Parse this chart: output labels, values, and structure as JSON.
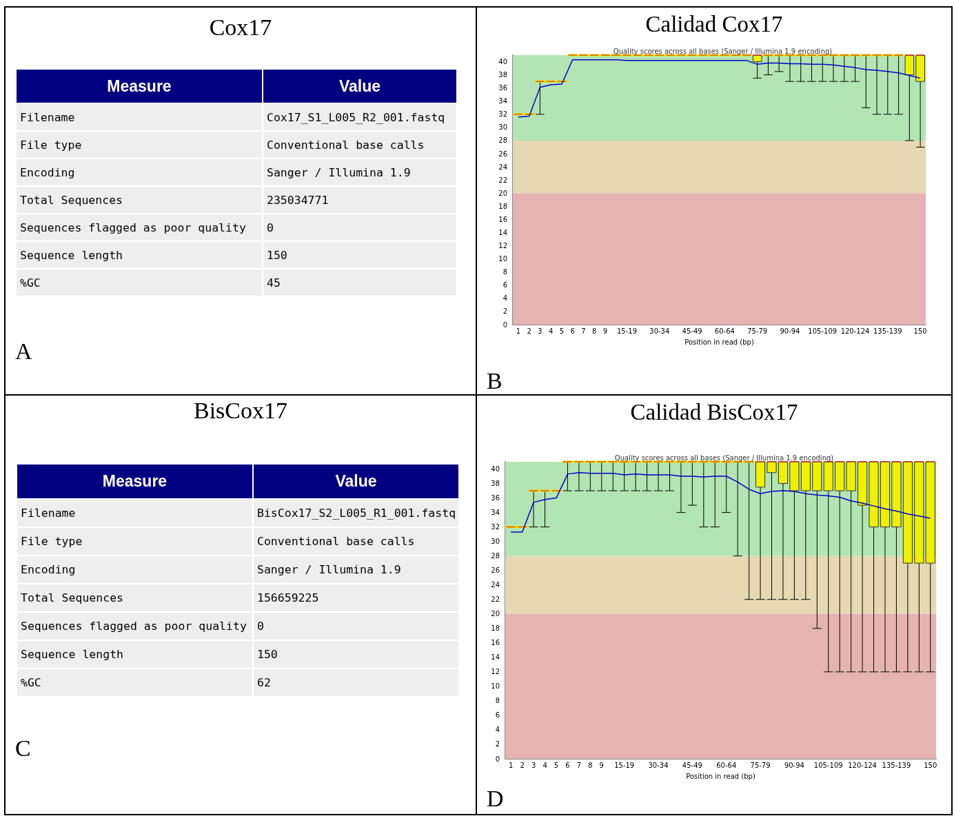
{
  "chart_data": [
    {
      "type": "other",
      "title": "Cox17",
      "annotations": [
        "Measure",
        "Value",
        "Filename",
        "Cox17_S1_L005_R2_001.fastq",
        "File type",
        "Conventional base calls",
        "Encoding",
        "Sanger / Illumina 1.9",
        "Total Sequences",
        "235034771",
        "Sequences flagged as poor quality",
        "0",
        "Sequence length",
        "150",
        "%GC",
        "45",
        "A"
      ]
    },
    {
      "type": "box",
      "title": "Calidad Cox17",
      "subtitle": "Quality scores across all bases (Sanger / Illumina 1.9 encoding)",
      "xlabel": "Position in read (bp)",
      "annotations": [
        "B"
      ],
      "categories": [
        "1",
        "2",
        "3",
        "4",
        "5",
        "6",
        "7",
        "8",
        "9",
        null,
        "15-19",
        null,
        null,
        "30-34",
        null,
        null,
        "45-49",
        null,
        null,
        "60-64",
        null,
        null,
        "75-79",
        null,
        null,
        "90-94",
        null,
        null,
        "105-109",
        null,
        null,
        "120-124",
        null,
        null,
        "135-139",
        null,
        null,
        "150"
      ],
      "ylim": [
        0,
        41
      ],
      "yticks": [
        0,
        2,
        4,
        6,
        8,
        10,
        12,
        14,
        16,
        18,
        20,
        22,
        24,
        26,
        28,
        30,
        32,
        34,
        36,
        38,
        40
      ],
      "grid": false,
      "marker": "none",
      "bands": [
        {
          "axis": "y",
          "from": 28,
          "to": 41,
          "color": "#b3e4b3"
        },
        {
          "axis": "y",
          "from": 20,
          "to": 28,
          "color": "#e6d8b3"
        },
        {
          "axis": "y",
          "from": 0,
          "to": 20,
          "color": "#e6b3b3"
        }
      ],
      "series": [
        {
          "type": "box",
          "color": "#f0f000",
          "boxes": [
            {
              "low": 32,
              "q1": 32,
              "median": 32,
              "q3": 32,
              "high": 32
            },
            {
              "low": 32,
              "q1": 32,
              "median": 32,
              "q3": 32,
              "high": 32
            },
            {
              "low": 32,
              "q1": 37,
              "median": 37,
              "q3": 37,
              "high": 37
            },
            {
              "low": 37,
              "q1": 37,
              "median": 37,
              "q3": 37,
              "high": 37
            },
            {
              "low": 37,
              "q1": 37,
              "median": 37,
              "q3": 37,
              "high": 37
            },
            {
              "low": 41,
              "q1": 41,
              "median": 41,
              "q3": 41,
              "high": 41
            },
            {
              "low": 41,
              "q1": 41,
              "median": 41,
              "q3": 41,
              "high": 41
            },
            {
              "low": 41,
              "q1": 41,
              "median": 41,
              "q3": 41,
              "high": 41
            },
            {
              "low": 41,
              "q1": 41,
              "median": 41,
              "q3": 41,
              "high": 41
            },
            {
              "low": 41,
              "q1": 41,
              "median": 41,
              "q3": 41,
              "high": 41
            },
            {
              "low": 41,
              "q1": 41,
              "median": 41,
              "q3": 41,
              "high": 41
            },
            {
              "low": 41,
              "q1": 41,
              "median": 41,
              "q3": 41,
              "high": 41
            },
            {
              "low": 41,
              "q1": 41,
              "median": 41,
              "q3": 41,
              "high": 41
            },
            {
              "low": 41,
              "q1": 41,
              "median": 41,
              "q3": 41,
              "high": 41
            },
            {
              "low": 41,
              "q1": 41,
              "median": 41,
              "q3": 41,
              "high": 41
            },
            {
              "low": 41,
              "q1": 41,
              "median": 41,
              "q3": 41,
              "high": 41
            },
            {
              "low": 41,
              "q1": 41,
              "median": 41,
              "q3": 41,
              "high": 41
            },
            {
              "low": 41,
              "q1": 41,
              "median": 41,
              "q3": 41,
              "high": 41
            },
            {
              "low": 41,
              "q1": 41,
              "median": 41,
              "q3": 41,
              "high": 41
            },
            {
              "low": 41,
              "q1": 41,
              "median": 41,
              "q3": 41,
              "high": 41
            },
            {
              "low": 41,
              "q1": 41,
              "median": 41,
              "q3": 41,
              "high": 41
            },
            {
              "low": 41,
              "q1": 41,
              "median": 41,
              "q3": 41,
              "high": 41
            },
            {
              "low": 37.5,
              "q1": 40,
              "median": 41,
              "q3": 41,
              "high": 41
            },
            {
              "low": 38,
              "q1": 41,
              "median": 41,
              "q3": 41,
              "high": 41
            },
            {
              "low": 38.5,
              "q1": 41,
              "median": 41,
              "q3": 41,
              "high": 41
            },
            {
              "low": 37,
              "q1": 41,
              "median": 41,
              "q3": 41,
              "high": 41
            },
            {
              "low": 37,
              "q1": 41,
              "median": 41,
              "q3": 41,
              "high": 41
            },
            {
              "low": 37,
              "q1": 41,
              "median": 41,
              "q3": 41,
              "high": 41
            },
            {
              "low": 37,
              "q1": 41,
              "median": 41,
              "q3": 41,
              "high": 41
            },
            {
              "low": 37,
              "q1": 41,
              "median": 41,
              "q3": 41,
              "high": 41
            },
            {
              "low": 37,
              "q1": 41,
              "median": 41,
              "q3": 41,
              "high": 41
            },
            {
              "low": 37,
              "q1": 41,
              "median": 41,
              "q3": 41,
              "high": 41
            },
            {
              "low": 33,
              "q1": 41,
              "median": 41,
              "q3": 41,
              "high": 41
            },
            {
              "low": 32,
              "q1": 41,
              "median": 41,
              "q3": 41,
              "high": 41
            },
            {
              "low": 32,
              "q1": 41,
              "median": 41,
              "q3": 41,
              "high": 41
            },
            {
              "low": 32,
              "q1": 41,
              "median": 41,
              "q3": 41,
              "high": 41
            },
            {
              "low": 28,
              "q1": 38,
              "median": 41,
              "q3": 41,
              "high": 41
            },
            {
              "low": 27,
              "q1": 37,
              "median": 41,
              "q3": 41,
              "high": 41
            }
          ]
        },
        {
          "type": "line",
          "color": "#0000cc",
          "values": [
            31.6,
            31.7,
            36.1,
            36.5,
            36.6,
            40.3,
            40.3,
            40.3,
            40.3,
            40.3,
            40.2,
            40.2,
            40.2,
            40.2,
            40.2,
            40.2,
            40.2,
            40.2,
            40.2,
            40.2,
            40.2,
            40.2,
            39.6,
            39.8,
            39.8,
            39.7,
            39.7,
            39.6,
            39.6,
            39.5,
            39.3,
            39.1,
            38.8,
            38.7,
            38.5,
            38.3,
            37.9,
            37.5
          ]
        }
      ]
    },
    {
      "type": "other",
      "title": "BisCox17",
      "annotations": [
        "Measure",
        "Value",
        "Filename",
        "BisCox17_S2_L005_R1_001.fastq",
        "File type",
        "Conventional base calls",
        "Encoding",
        "Sanger / Illumina 1.9",
        "Total Sequences",
        "156659225",
        "Sequences flagged as poor quality",
        "0",
        "Sequence length",
        "150",
        "%GC",
        "62",
        "C"
      ]
    },
    {
      "type": "box",
      "title": "Calidad BisCox17",
      "subtitle": "Quality scores across all bases (Sanger / Illumina 1.9 encoding)",
      "xlabel": "Position in read (bp)",
      "annotations": [
        "D"
      ],
      "categories": [
        "1",
        "2",
        "3",
        "4",
        "5",
        "6",
        "7",
        "8",
        "9",
        null,
        "15-19",
        null,
        null,
        "30-34",
        null,
        null,
        "45-49",
        null,
        null,
        "60-64",
        null,
        null,
        "75-79",
        null,
        null,
        "90-94",
        null,
        null,
        "105-109",
        null,
        null,
        "120-124",
        null,
        null,
        "135-139",
        null,
        null,
        "150"
      ],
      "ylim": [
        0,
        41
      ],
      "yticks": [
        0,
        2,
        4,
        6,
        8,
        10,
        12,
        14,
        16,
        18,
        20,
        22,
        24,
        26,
        28,
        30,
        32,
        34,
        36,
        38,
        40
      ],
      "grid": false,
      "marker": "none",
      "bands": [
        {
          "axis": "y",
          "from": 28,
          "to": 41,
          "color": "#b3e4b3"
        },
        {
          "axis": "y",
          "from": 20,
          "to": 28,
          "color": "#e6d8b3"
        },
        {
          "axis": "y",
          "from": 0,
          "to": 20,
          "color": "#e6b3b3"
        }
      ],
      "series": [
        {
          "type": "box",
          "color": "#f0f000",
          "boxes": [
            {
              "low": 32,
              "q1": 32,
              "median": 32,
              "q3": 32,
              "high": 32
            },
            {
              "low": 32,
              "q1": 32,
              "median": 32,
              "q3": 32,
              "high": 32
            },
            {
              "low": 32,
              "q1": 37,
              "median": 37,
              "q3": 37,
              "high": 37
            },
            {
              "low": 32,
              "q1": 37,
              "median": 37,
              "q3": 37,
              "high": 37
            },
            {
              "low": 37,
              "q1": 37,
              "median": 37,
              "q3": 37,
              "high": 37
            },
            {
              "low": 37,
              "q1": 41,
              "median": 41,
              "q3": 41,
              "high": 41
            },
            {
              "low": 37,
              "q1": 41,
              "median": 41,
              "q3": 41,
              "high": 41
            },
            {
              "low": 37,
              "q1": 41,
              "median": 41,
              "q3": 41,
              "high": 41
            },
            {
              "low": 37,
              "q1": 41,
              "median": 41,
              "q3": 41,
              "high": 41
            },
            {
              "low": 37,
              "q1": 41,
              "median": 41,
              "q3": 41,
              "high": 41
            },
            {
              "low": 37,
              "q1": 41,
              "median": 41,
              "q3": 41,
              "high": 41
            },
            {
              "low": 37,
              "q1": 41,
              "median": 41,
              "q3": 41,
              "high": 41
            },
            {
              "low": 37,
              "q1": 41,
              "median": 41,
              "q3": 41,
              "high": 41
            },
            {
              "low": 37,
              "q1": 41,
              "median": 41,
              "q3": 41,
              "high": 41
            },
            {
              "low": 37,
              "q1": 41,
              "median": 41,
              "q3": 41,
              "high": 41
            },
            {
              "low": 34,
              "q1": 41,
              "median": 41,
              "q3": 41,
              "high": 41
            },
            {
              "low": 35,
              "q1": 41,
              "median": 41,
              "q3": 41,
              "high": 41
            },
            {
              "low": 32,
              "q1": 41,
              "median": 41,
              "q3": 41,
              "high": 41
            },
            {
              "low": 32,
              "q1": 41,
              "median": 41,
              "q3": 41,
              "high": 41
            },
            {
              "low": 34,
              "q1": 41,
              "median": 41,
              "q3": 41,
              "high": 41
            },
            {
              "low": 28,
              "q1": 41,
              "median": 41,
              "q3": 41,
              "high": 41
            },
            {
              "low": 22,
              "q1": 41,
              "median": 41,
              "q3": 41,
              "high": 41
            },
            {
              "low": 22,
              "q1": 37.5,
              "median": 41,
              "q3": 41,
              "high": 41
            },
            {
              "low": 22,
              "q1": 39.5,
              "median": 41,
              "q3": 41,
              "high": 41
            },
            {
              "low": 22,
              "q1": 38,
              "median": 41,
              "q3": 41,
              "high": 41
            },
            {
              "low": 22,
              "q1": 37,
              "median": 41,
              "q3": 41,
              "high": 41
            },
            {
              "low": 22,
              "q1": 37,
              "median": 41,
              "q3": 41,
              "high": 41
            },
            {
              "low": 18,
              "q1": 37,
              "median": 41,
              "q3": 41,
              "high": 41
            },
            {
              "low": 12,
              "q1": 37,
              "median": 41,
              "q3": 41,
              "high": 41
            },
            {
              "low": 12,
              "q1": 37,
              "median": 41,
              "q3": 41,
              "high": 41
            },
            {
              "low": 12,
              "q1": 37,
              "median": 41,
              "q3": 41,
              "high": 41
            },
            {
              "low": 12,
              "q1": 35,
              "median": 41,
              "q3": 41,
              "high": 41
            },
            {
              "low": 12,
              "q1": 32,
              "median": 41,
              "q3": 41,
              "high": 41
            },
            {
              "low": 12,
              "q1": 32,
              "median": 41,
              "q3": 41,
              "high": 41
            },
            {
              "low": 12,
              "q1": 32,
              "median": 41,
              "q3": 41,
              "high": 41
            },
            {
              "low": 12,
              "q1": 27,
              "median": 41,
              "q3": 41,
              "high": 41
            },
            {
              "low": 12,
              "q1": 27,
              "median": 41,
              "q3": 41,
              "high": 41
            },
            {
              "low": 12,
              "q1": 27,
              "median": 41,
              "q3": 41,
              "high": 41
            }
          ]
        },
        {
          "type": "line",
          "color": "#0000cc",
          "values": [
            31.3,
            31.3,
            35.4,
            35.8,
            36.0,
            39.3,
            39.5,
            39.4,
            39.4,
            39.4,
            39.2,
            39.3,
            39.2,
            39.2,
            39.2,
            39.0,
            39.0,
            38.9,
            39.0,
            39.0,
            38.2,
            37.2,
            36.6,
            36.9,
            37.0,
            36.9,
            36.6,
            36.4,
            36.3,
            36.1,
            35.6,
            35.3,
            34.9,
            34.5,
            34.2,
            33.8,
            33.5,
            33.2
          ]
        }
      ]
    }
  ]
}
